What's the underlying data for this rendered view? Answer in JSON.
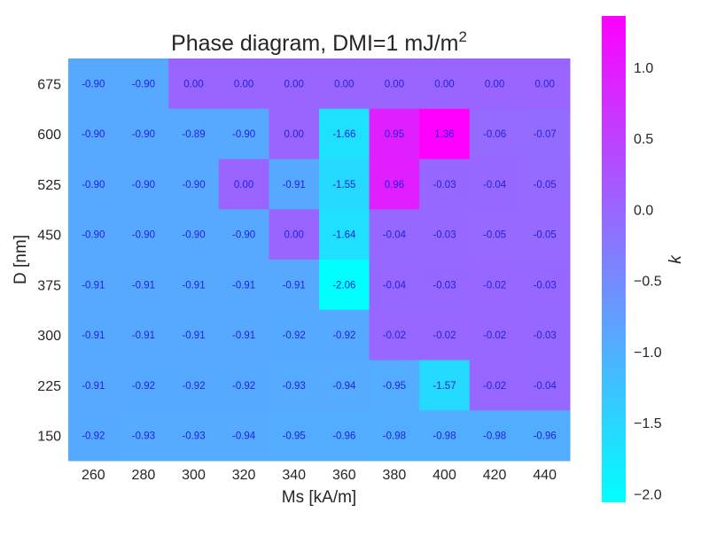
{
  "chart_data": {
    "type": "heatmap",
    "title": "Phase diagram, DMI=1 mJ/m",
    "title_superscript": "2",
    "xlabel": "Ms [kA/m]",
    "ylabel": "D [nm]",
    "x": [
      "260",
      "280",
      "300",
      "320",
      "340",
      "360",
      "380",
      "400",
      "420",
      "440"
    ],
    "y": [
      "675",
      "600",
      "525",
      "450",
      "375",
      "300",
      "225",
      "150"
    ],
    "values": [
      [
        -0.9,
        -0.9,
        0.0,
        0.0,
        0.0,
        0.0,
        0.0,
        0.0,
        0.0,
        0.0
      ],
      [
        -0.9,
        -0.9,
        -0.89,
        -0.9,
        0.0,
        -1.66,
        0.95,
        1.36,
        -0.06,
        -0.07
      ],
      [
        -0.9,
        -0.9,
        -0.9,
        0.0,
        -0.91,
        -1.55,
        0.96,
        -0.03,
        -0.04,
        -0.05
      ],
      [
        -0.9,
        -0.9,
        -0.9,
        -0.9,
        0.0,
        -1.64,
        -0.04,
        -0.03,
        -0.05,
        -0.05
      ],
      [
        -0.91,
        -0.91,
        -0.91,
        -0.91,
        -0.91,
        -2.06,
        -0.04,
        -0.03,
        -0.02,
        -0.03
      ],
      [
        -0.91,
        -0.91,
        -0.91,
        -0.91,
        -0.92,
        -0.92,
        -0.02,
        -0.02,
        -0.02,
        -0.03
      ],
      [
        -0.91,
        -0.92,
        -0.92,
        -0.92,
        -0.93,
        -0.94,
        -0.95,
        -1.57,
        -0.02,
        -0.04
      ],
      [
        -0.92,
        -0.93,
        -0.93,
        -0.94,
        -0.95,
        -0.96,
        -0.98,
        -0.98,
        -0.98,
        -0.96
      ]
    ],
    "annotation_color": "#2222dd",
    "colormap": "cool",
    "colorbar": {
      "label": "k",
      "range": [
        -2.06,
        1.36
      ],
      "ticks": [
        1.0,
        0.5,
        0.0,
        -0.5,
        -1.0,
        -1.5,
        -2.0
      ],
      "tick_labels": [
        "1.0",
        "0.5",
        "0.0",
        "−0.5",
        "−1.0",
        "−1.5",
        "−2.0"
      ]
    },
    "grid": false
  }
}
